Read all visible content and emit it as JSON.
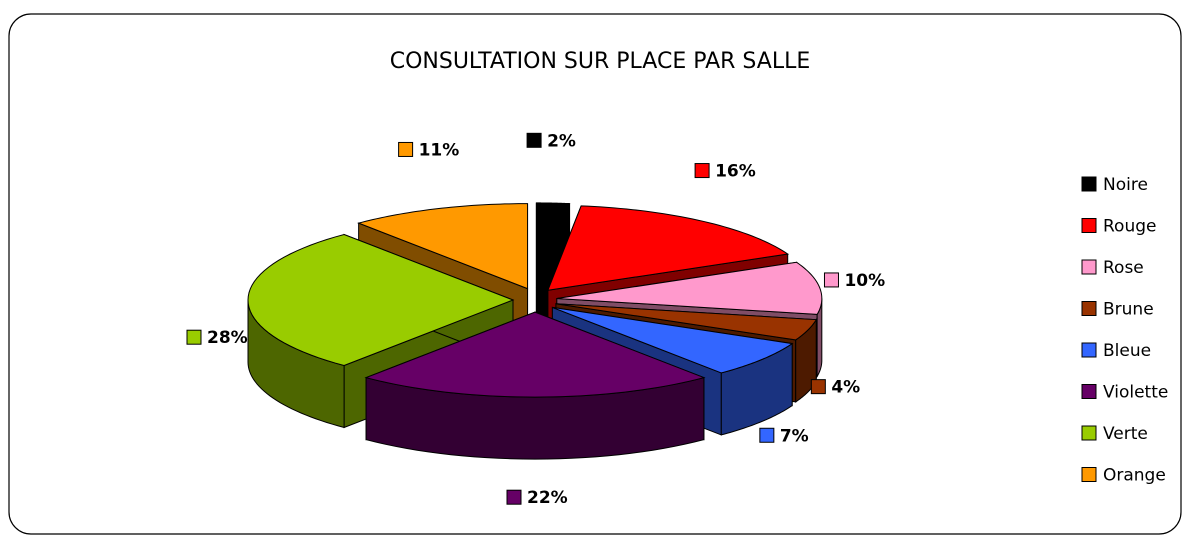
{
  "chart_data": {
    "type": "pie",
    "title": "CONSULTATION SUR PLACE PAR SALLE",
    "categories": [
      "Noire",
      "Rouge",
      "Rose",
      "Brune",
      "Bleue",
      "Violette",
      "Verte",
      "Orange"
    ],
    "values": [
      2,
      16,
      10,
      4,
      7,
      22,
      28,
      11
    ],
    "value_labels": [
      "2%",
      "16%",
      "10%",
      "4%",
      "7%",
      "22%",
      "28%",
      "11%"
    ],
    "colors": [
      "#000000",
      "#ff0000",
      "#ff99cc",
      "#993300",
      "#3366ff",
      "#660066",
      "#99cc00",
      "#ff9900"
    ],
    "legend": "right"
  }
}
